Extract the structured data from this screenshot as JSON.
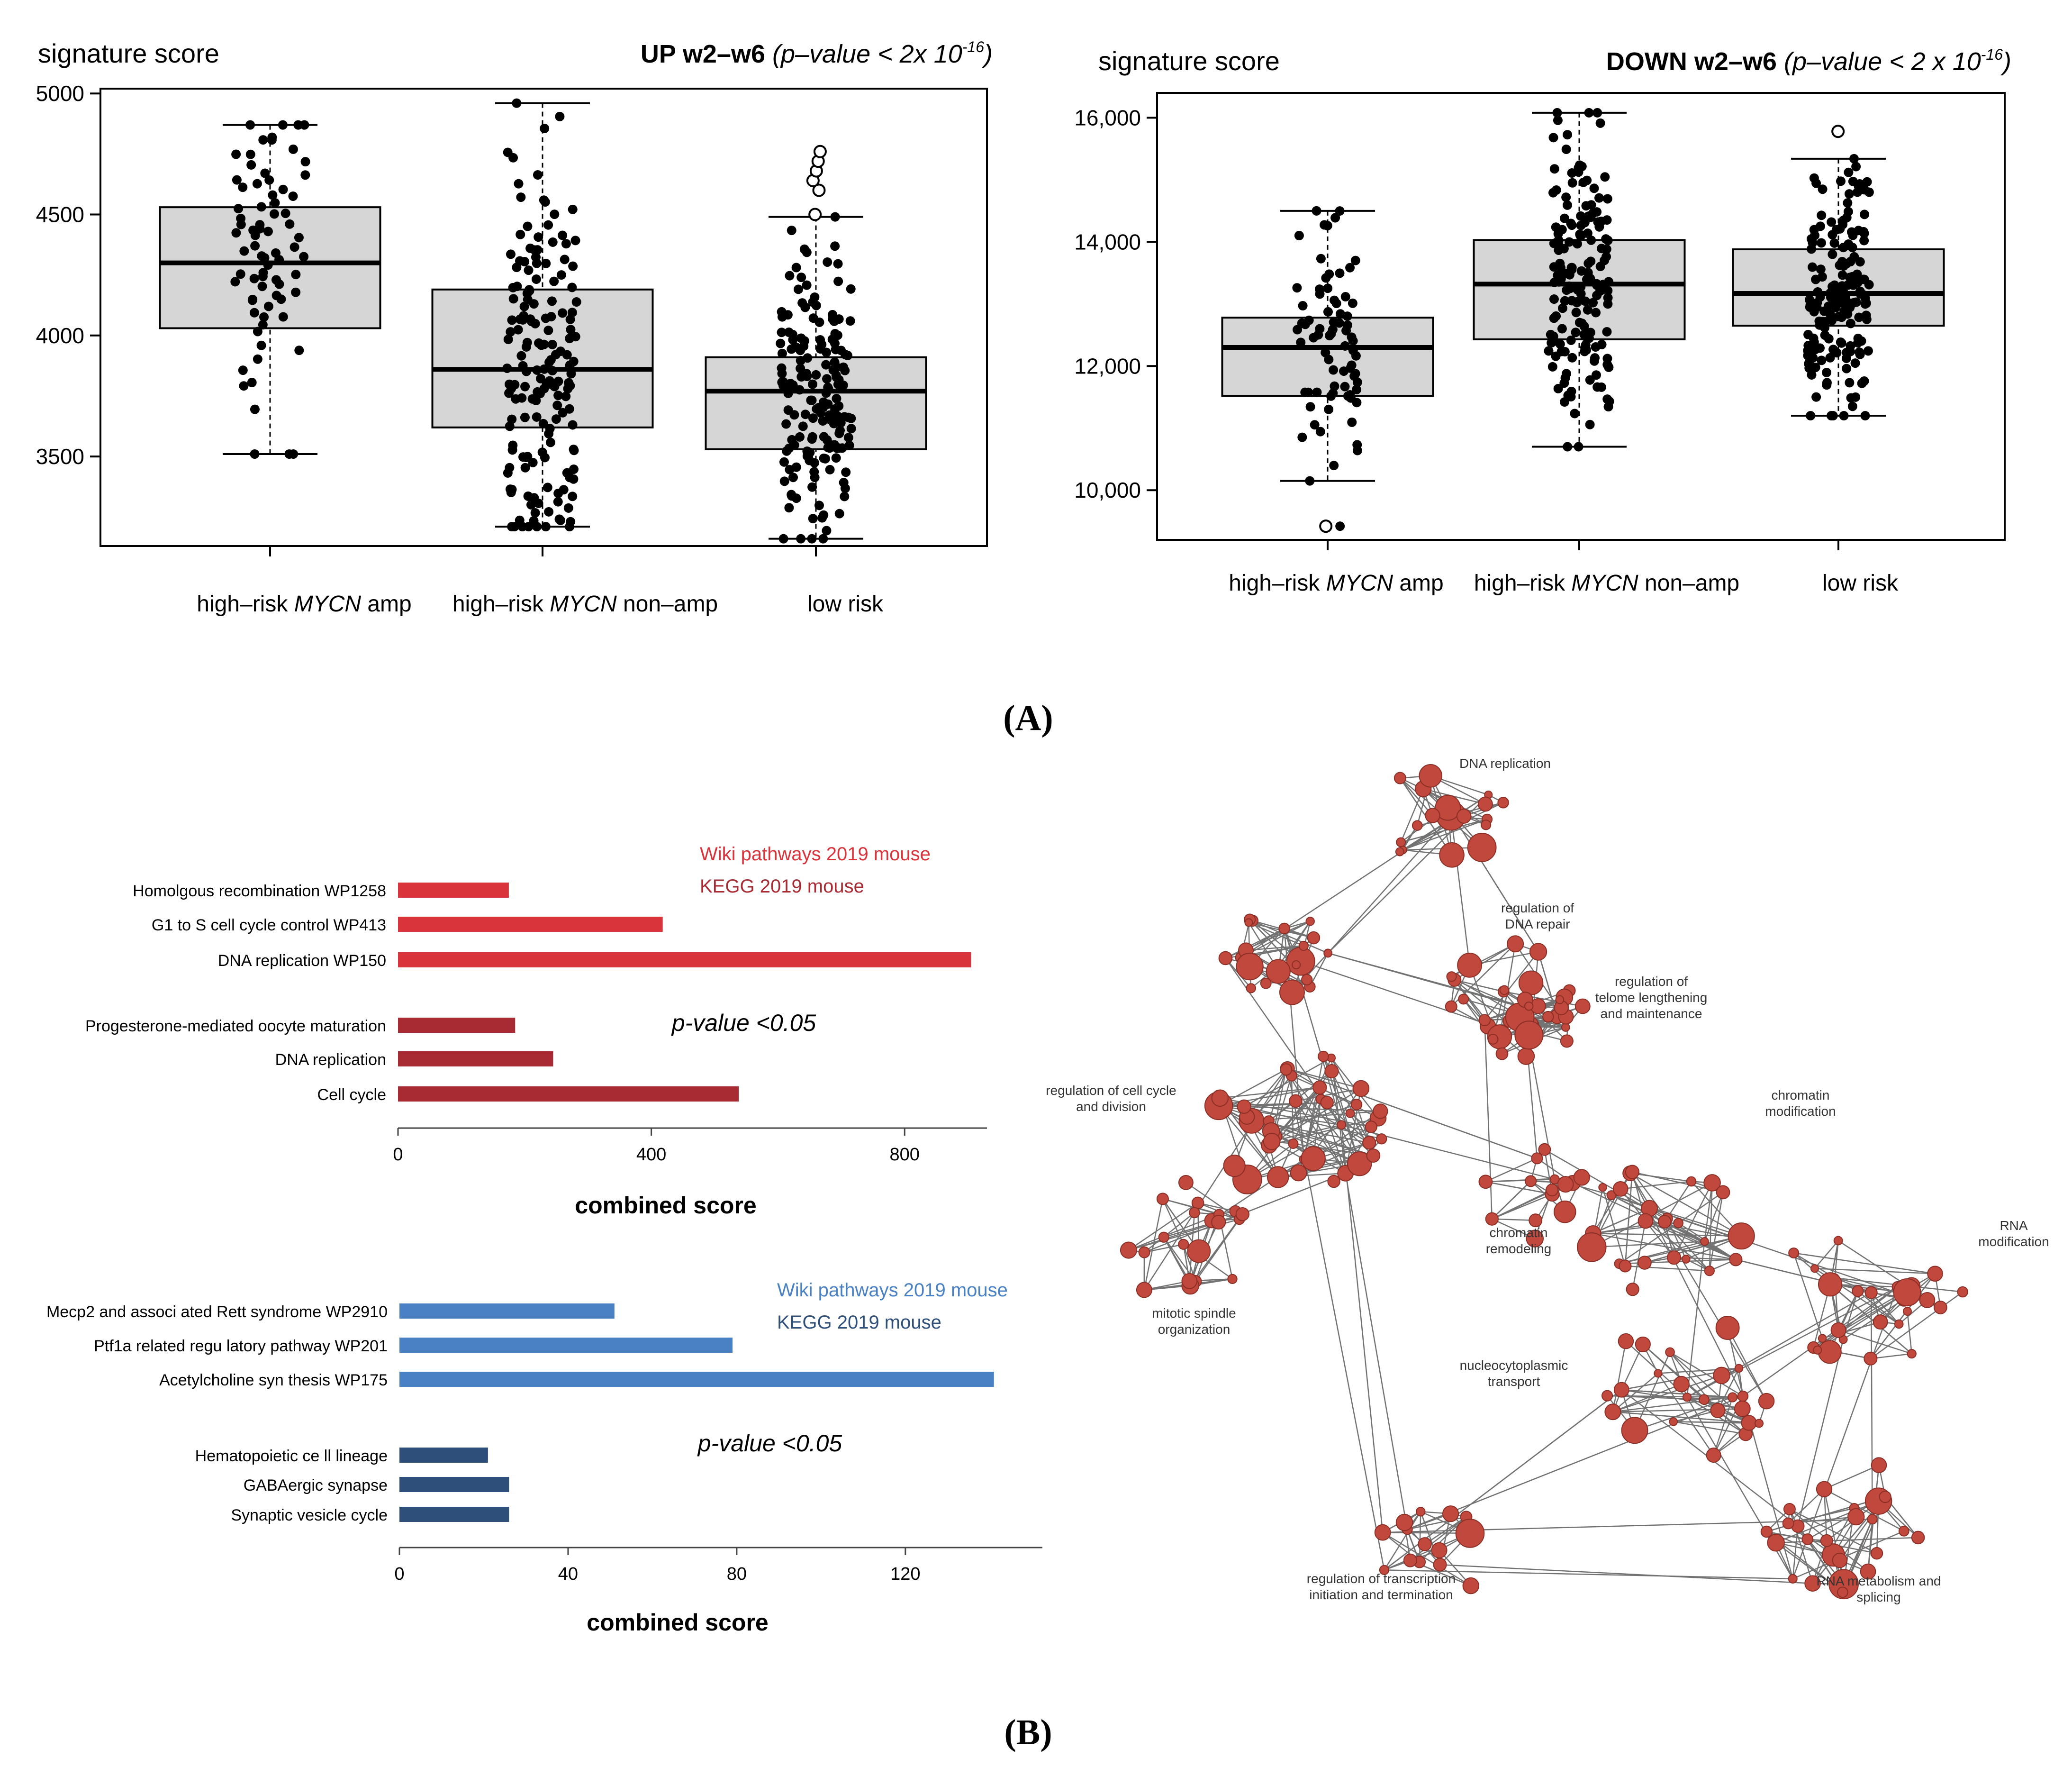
{
  "panel_labels": {
    "a": "(A)",
    "b": "(B)"
  },
  "chart_data": [
    {
      "id": "box_up",
      "type": "boxplot",
      "ylabel": "signature score",
      "title_bold": "UP w2–w6",
      "title_italic": "(p–value < 2x 10",
      "title_sup": "-16",
      "title_close": ")",
      "ylim": [
        3130,
        5020
      ],
      "yticks": [
        3500,
        4000,
        4500,
        5000
      ],
      "ytick_labels": [
        "3500",
        "4000",
        "4500",
        "5000"
      ],
      "groups": [
        {
          "label_pre": "high–risk ",
          "label_it": "MYCN",
          "label_post": " amp",
          "q1": 4030,
          "median": 4300,
          "q3": 4530,
          "wlo": 3510,
          "whi": 4870,
          "n": 75,
          "outliers": []
        },
        {
          "label_pre": "high–risk ",
          "label_it": "MYCN",
          "label_post": " non–amp",
          "q1": 3620,
          "median": 3860,
          "q3": 4190,
          "wlo": 3210,
          "whi": 4960,
          "n": 170,
          "outliers": []
        },
        {
          "label_pre": "low risk",
          "label_it": "",
          "label_post": "",
          "q1": 3530,
          "median": 3770,
          "q3": 3910,
          "wlo": 3160,
          "whi": 4490,
          "n": 175,
          "outliers": [
            4500,
            4600,
            4640,
            4680,
            4720,
            4760
          ]
        }
      ]
    },
    {
      "id": "box_down",
      "type": "boxplot",
      "ylabel": "signature score",
      "title_bold": "DOWN w2–w6",
      "title_italic": "(p–value < 2 x 10",
      "title_sup": "-16",
      "title_close": ")",
      "ylim": [
        9200,
        16400
      ],
      "yticks": [
        10000,
        12000,
        14000,
        16000
      ],
      "ytick_labels": [
        "10,000",
        "12,000",
        "14,000",
        "16,000"
      ],
      "groups": [
        {
          "label_pre": "high–risk ",
          "label_it": "MYCN",
          "label_post": " amp",
          "q1": 11520,
          "median": 12300,
          "q3": 12780,
          "wlo": 10150,
          "whi": 14500,
          "n": 75,
          "outliers": [
            9420
          ]
        },
        {
          "label_pre": "high–risk ",
          "label_it": "MYCN",
          "label_post": " non–amp",
          "q1": 12430,
          "median": 13320,
          "q3": 14030,
          "wlo": 10700,
          "whi": 16080,
          "n": 170,
          "outliers": []
        },
        {
          "label_pre": "low risk",
          "label_it": "",
          "label_post": "",
          "q1": 12650,
          "median": 13170,
          "q3": 13880,
          "wlo": 11200,
          "whi": 15340,
          "n": 175,
          "outliers": [
            15780
          ]
        }
      ]
    },
    {
      "id": "bars_up",
      "type": "bar",
      "orientation": "horizontal",
      "xlabel": "combined score",
      "xlim": [
        0,
        930
      ],
      "xticks": [
        0,
        400,
        800
      ],
      "xtick_labels": [
        "0",
        "400",
        "800"
      ],
      "annotation": "p-value <0.05",
      "legend": [
        {
          "name": "Wiki pathways 2019 mouse",
          "color": "#d9343c"
        },
        {
          "name": "KEGG 2019 mouse",
          "color": "#a82a32"
        }
      ],
      "categories": [
        "Homolgous recombination WP1258",
        "G1 to S cell cycle control WP413",
        "DNA replication WP150",
        "Progesterone-mediated oocyte maturation",
        "DNA replication",
        "Cell cycle"
      ],
      "values": [
        175,
        418,
        905,
        185,
        245,
        538
      ],
      "series_index": [
        0,
        0,
        0,
        1,
        1,
        1
      ]
    },
    {
      "id": "bars_down",
      "type": "bar",
      "orientation": "horizontal",
      "xlabel": "combined score",
      "xlim": [
        0,
        148
      ],
      "xticks": [
        0,
        40,
        80,
        120
      ],
      "xtick_labels": [
        "0",
        "40",
        "80",
        "120"
      ],
      "annotation": "p-value <0.05",
      "legend": [
        {
          "name": "Wiki pathways 2019 mouse",
          "color": "#4a81c4"
        },
        {
          "name": "KEGG 2019 mouse",
          "color": "#2e4f7a"
        }
      ],
      "categories": [
        "Mecp2 and associ ated Rett syndrome WP2910",
        "Ptf1a related regu latory pathway WP201",
        "Acetylcholine syn thesis WP175",
        "Hematopoietic ce ll lineage",
        "GABAergic synapse",
        "Synaptic vesicle cycle"
      ],
      "values": [
        51,
        79,
        141,
        21,
        26,
        26
      ],
      "series_index": [
        0,
        0,
        0,
        1,
        1,
        1
      ]
    }
  ],
  "network": {
    "node_color": "#c0483c",
    "labels": [
      "DNA replication",
      "regulation of\nDNA repair",
      "regulation of\ntelome lengthening\nand maintenance",
      "regulation of cell cycle\nand division",
      "chromatin\nmodification",
      "chromatin\nremodeling",
      "RNA\nmodification",
      "mitotic spindle\norganization",
      "nucleocytoplasmic\ntransport",
      "regulation of transcription\ninitiation and termination",
      "RNA metabolism and\nsplicing"
    ]
  }
}
